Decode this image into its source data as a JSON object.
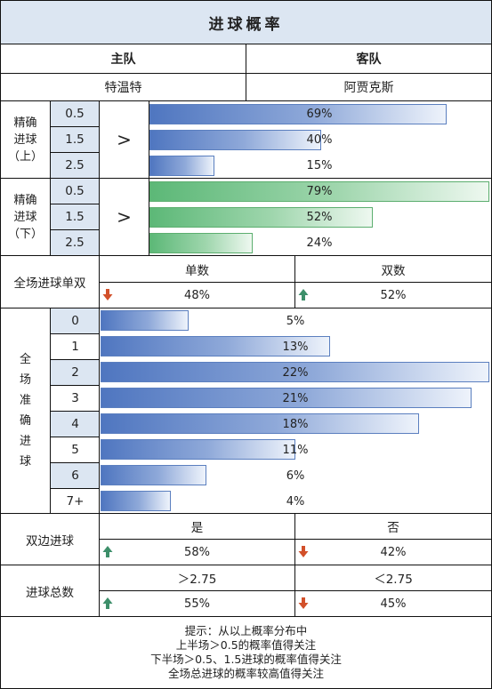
{
  "title": "进球概率",
  "headers": {
    "home": "主队",
    "away": "客队"
  },
  "teams": {
    "home": "特温特",
    "away": "阿贾克斯"
  },
  "half_compare_symbol": ">",
  "first_half": {
    "label": [
      "精确",
      "进球",
      "（上）"
    ],
    "rows": [
      {
        "line": "0.5",
        "value": 69,
        "text": "69%"
      },
      {
        "line": "1.5",
        "value": 40,
        "text": "40%"
      },
      {
        "line": "2.5",
        "value": 15,
        "text": "15%"
      }
    ]
  },
  "second_half": {
    "label": [
      "精确",
      "进球",
      "（下）"
    ],
    "rows": [
      {
        "line": "0.5",
        "value": 79,
        "text": "79%"
      },
      {
        "line": "1.5",
        "value": 52,
        "text": "52%"
      },
      {
        "line": "2.5",
        "value": 24,
        "text": "24%"
      }
    ]
  },
  "odd_even": {
    "label": "全场进球单双",
    "left": {
      "name": "单数",
      "text": "48%",
      "arrow": "down"
    },
    "right": {
      "name": "双数",
      "text": "52%",
      "arrow": "up"
    }
  },
  "exact_goals": {
    "label": [
      "全",
      "场",
      "准",
      "确",
      "进",
      "球"
    ],
    "rows": [
      {
        "goals": "0",
        "value": 5,
        "text": "5%"
      },
      {
        "goals": "1",
        "value": 13,
        "text": "13%"
      },
      {
        "goals": "2",
        "value": 22,
        "text": "22%"
      },
      {
        "goals": "3",
        "value": 21,
        "text": "21%"
      },
      {
        "goals": "4",
        "value": 18,
        "text": "18%"
      },
      {
        "goals": "5",
        "value": 11,
        "text": "11%"
      },
      {
        "goals": "6",
        "value": 6,
        "text": "6%"
      },
      {
        "goals": "7+",
        "value": 4,
        "text": "4%"
      }
    ]
  },
  "both_score": {
    "label": "双边进球",
    "left": {
      "name": "是",
      "text": "58%",
      "arrow": "up"
    },
    "right": {
      "name": "否",
      "text": "42%",
      "arrow": "down"
    }
  },
  "total_goals": {
    "label": "进球总数",
    "left": {
      "name": "＞2.75",
      "text": "55%",
      "arrow": "up"
    },
    "right": {
      "name": "＜2.75",
      "text": "45%",
      "arrow": "down"
    }
  },
  "footer": [
    "提示：从以上概率分布中",
    "上半场＞0.5的概率值得关注",
    "下半场＞0.5、1.5进球的概率值得关注",
    "全场总进球的概率较高值得关注"
  ],
  "colors": {
    "up_arrow": "#3d8f6a",
    "down_arrow": "#d2502a",
    "header_bg": "#dce6f2"
  }
}
